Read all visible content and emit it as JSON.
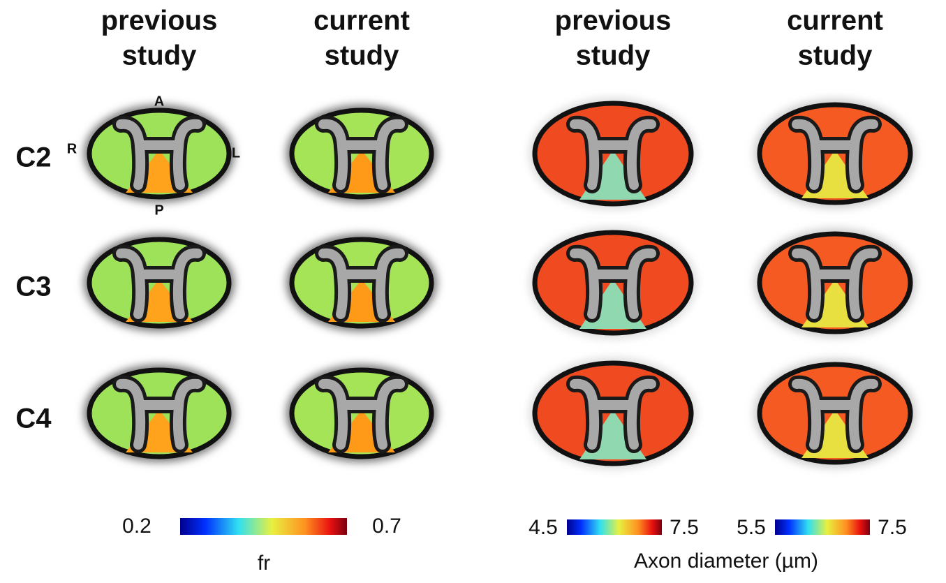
{
  "column_headers": [
    [
      "previous",
      "study"
    ],
    [
      "current",
      "study"
    ],
    [
      "previous",
      "study"
    ],
    [
      "current",
      "study"
    ]
  ],
  "row_labels": [
    "C2",
    "C3",
    "C4"
  ],
  "orientation_labels": {
    "anterior": "A",
    "right": "R",
    "left": "L",
    "posterior": "P"
  },
  "colorbars": [
    {
      "min": 0.2,
      "max": 0.7,
      "label": "fr"
    },
    {
      "min": 4.5,
      "max": 7.5
    },
    {
      "min": 5.5,
      "max": 7.5
    }
  ],
  "colorbar_group_label": "Axon diameter (µm)"
}
